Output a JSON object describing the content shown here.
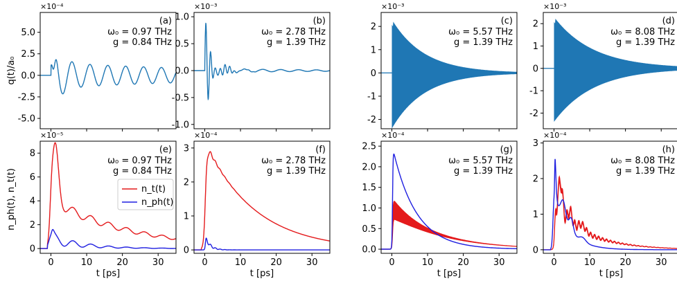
{
  "figure": {
    "x_axis_label": "t [ps]",
    "top_row_y_label": "q(t)/a₀",
    "bottom_row_y_label": "n_ph(t), n_t(t)",
    "legend": {
      "entries": [
        {
          "label": "n_t(t)",
          "sub": "t",
          "color": "#e41a1c"
        },
        {
          "label": "n_ph(t)",
          "sub": "ph",
          "color": "#1f1fe0"
        }
      ]
    }
  },
  "chart_data": [
    {
      "panel": "(a)",
      "type": "line",
      "omega": "ω₀ = 0.97 THz",
      "g": "g = 0.84 THz",
      "exponent": "×10⁻⁴",
      "xlim": [
        -3,
        35
      ],
      "ylim": [
        -6.2,
        7.3
      ],
      "yticks": [
        "-5.0",
        "-2.5",
        "0.0",
        "2.5",
        "5.0"
      ],
      "ytick_values": [
        -5,
        -2.5,
        0,
        2.5,
        5
      ],
      "xticks": [
        0,
        10,
        20,
        30
      ],
      "show_xticklabels": false,
      "series": [
        {
          "name": "q(t)",
          "color": "#1f77b4",
          "model": {
            "kind": "damped",
            "f": 0.2,
            "A": 6.8,
            "tau": 8,
            "floor": 1.5,
            "kick": true
          }
        }
      ]
    },
    {
      "panel": "(b)",
      "type": "line",
      "omega": "ω₀ = 2.78 THz",
      "g": "g = 1.39 THz",
      "exponent": "×10⁻³",
      "xlim": [
        -3,
        35
      ],
      "ylim": [
        -1.08,
        1.08
      ],
      "yticks": [
        "-1.0",
        "-0.5",
        "0.0",
        "0.5",
        "1.0"
      ],
      "ytick_values": [
        -1,
        -0.5,
        0,
        0.5,
        1
      ],
      "xticks": [
        0,
        10,
        20,
        30
      ],
      "show_xticklabels": false,
      "series": [
        {
          "name": "q(t)",
          "color": "#1f77b4",
          "model": {
            "kind": "beat",
            "f": 0.75,
            "A": 1.0,
            "tau": 2.5,
            "slow_f": 0.2,
            "slow_A": 0.04
          }
        }
      ]
    },
    {
      "panel": "(c)",
      "type": "line",
      "omega": "ω₀ = 5.57 THz",
      "g": "g = 1.39 THz",
      "exponent": "×10⁻³",
      "xlim": [
        -3,
        35
      ],
      "ylim": [
        -2.4,
        2.6
      ],
      "yticks": [
        "-2",
        "-1",
        "0",
        "1",
        "2"
      ],
      "ytick_values": [
        -2,
        -1,
        0,
        1,
        2
      ],
      "xticks": [
        0,
        10,
        20,
        30
      ],
      "show_xticklabels": false,
      "series": [
        {
          "name": "q(t)",
          "color": "#1f77b4",
          "model": {
            "kind": "envelope",
            "A": 2.3,
            "tau": 9
          }
        }
      ]
    },
    {
      "panel": "(d)",
      "type": "line",
      "omega": "ω₀ = 8.08 THz",
      "g": "g = 1.39 THz",
      "exponent": "×10⁻³",
      "xlim": [
        -3,
        35
      ],
      "ylim": [
        -2.7,
        2.5
      ],
      "yticks": [
        "-2",
        "-1",
        "0",
        "1",
        "2"
      ],
      "ytick_values": [
        -2,
        -1,
        0,
        1,
        2
      ],
      "xticks": [
        0,
        10,
        20,
        30
      ],
      "show_xticklabels": false,
      "series": [
        {
          "name": "q(t)",
          "color": "#1f77b4",
          "model": {
            "kind": "envelope",
            "A": 2.3,
            "tau": 11
          }
        }
      ]
    },
    {
      "panel": "(e)",
      "type": "line",
      "omega": "ω₀ = 0.97 THz",
      "g": "g = 0.84 THz",
      "exponent": "×10⁻⁵",
      "xlim": [
        -3,
        35
      ],
      "ylim": [
        -0.4,
        9.0
      ],
      "yticks": [
        "0",
        "2",
        "4",
        "6",
        "8"
      ],
      "ytick_values": [
        0,
        2,
        4,
        6,
        8
      ],
      "xticks": [
        0,
        10,
        20,
        30
      ],
      "show_xticklabels": true,
      "legend": true,
      "series": [
        {
          "name": "n_t(t)",
          "color": "#e41a1c",
          "model": {
            "kind": "rise_decay",
            "rise": 0.7,
            "A": 4.1,
            "tau": 22,
            "osc_A": 0.45,
            "osc_f": 0.2,
            "osc_tau": 25,
            "peak": [
              1.2,
              4.6,
              0.9
            ],
            "peak2": [
              0,
              2.0,
              0.4
            ]
          }
        },
        {
          "name": "n_ph(t)",
          "color": "#1f1fe0",
          "model": {
            "kind": "rise_decay",
            "rise": 0.5,
            "A": 0.8,
            "tau": 9,
            "osc_A": 0.5,
            "osc_f": 0.2,
            "osc_tau": 9,
            "peak": [
              0,
              1.0,
              0.6
            ],
            "peak2": [
              0,
              0,
              1
            ]
          }
        }
      ]
    },
    {
      "panel": "(f)",
      "type": "line",
      "omega": "ω₀ = 2.78 THz",
      "g": "g = 1.39 THz",
      "exponent": "×10⁻⁴",
      "xlim": [
        -3,
        35
      ],
      "ylim": [
        -0.1,
        3.2
      ],
      "yticks": [
        "0",
        "1",
        "2",
        "3"
      ],
      "ytick_values": [
        0,
        1,
        2,
        3
      ],
      "xticks": [
        0,
        10,
        20,
        30
      ],
      "show_xticklabels": true,
      "series": [
        {
          "name": "n_t(t)",
          "color": "#e41a1c",
          "model": {
            "kind": "rise_decay",
            "rise": 0.8,
            "A": 3.2,
            "tau": 14,
            "osc_A": 0.1,
            "osc_f": 0.75,
            "osc_tau": 2.5,
            "peak": [
              0,
              0,
              1
            ],
            "peak2": [
              0,
              0,
              1
            ]
          }
        },
        {
          "name": "n_ph(t)",
          "color": "#1f1fe0",
          "model": {
            "kind": "rise_decay",
            "rise": 0.3,
            "A": 0.45,
            "tau": 1.3,
            "osc_A": 0.08,
            "osc_f": 0.75,
            "osc_tau": 2,
            "peak": [
              0,
              0,
              1
            ],
            "peak2": [
              0,
              0,
              1
            ]
          }
        }
      ]
    },
    {
      "panel": "(g)",
      "type": "line",
      "omega": "ω₀ = 5.57 THz",
      "g": "g = 1.39 THz",
      "exponent": "×10⁻⁴",
      "xlim": [
        -3,
        35
      ],
      "ylim": [
        -0.1,
        2.62
      ],
      "yticks": [
        "0.0",
        "0.5",
        "1.0",
        "1.5",
        "2.0",
        "2.5"
      ],
      "ytick_values": [
        0,
        0.5,
        1.0,
        1.5,
        2.0,
        2.5
      ],
      "xticks": [
        0,
        10,
        20,
        30
      ],
      "show_xticklabels": true,
      "series": [
        {
          "name": "n_t(t)",
          "color": "#e41a1c",
          "model": {
            "kind": "band",
            "rise": 0.3,
            "A": 1.0,
            "tau": 13,
            "band_A": 0.25,
            "band_tau": 6
          }
        },
        {
          "name": "n_ph(t)",
          "color": "#1f1fe0",
          "model": {
            "kind": "rise_decay",
            "rise": 0.25,
            "A": 2.55,
            "tau": 6.5,
            "osc_A": 0,
            "osc_f": 1,
            "osc_tau": 1,
            "peak": [
              0,
              0,
              1
            ],
            "peak2": [
              0,
              0,
              1
            ]
          }
        }
      ]
    },
    {
      "panel": "(h)",
      "type": "line",
      "omega": "ω₀ = 8.08 THz",
      "g": "g = 1.39 THz",
      "exponent": "×10⁻⁴",
      "xlim": [
        -3,
        35
      ],
      "ylim": [
        -0.1,
        3.05
      ],
      "yticks": [
        "0",
        "1",
        "2",
        "3"
      ],
      "ytick_values": [
        0,
        1,
        2,
        3
      ],
      "xticks": [
        0,
        10,
        20,
        30
      ],
      "show_xticklabels": true,
      "series": [
        {
          "name": "n_t(t)",
          "color": "#e41a1c",
          "model": {
            "kind": "band",
            "rise": 0.5,
            "A": 1.15,
            "tau": 10,
            "band_A": 0.08,
            "band_tau": 8,
            "bumps": [
              [
                1.8,
                0.95,
                0.6
              ],
              [
                4.5,
                0.35,
                0.6
              ],
              [
                7.8,
                0.18,
                1.0
              ]
            ],
            "wiggle": [
              0.9,
              0.25,
              7
            ]
          }
        },
        {
          "name": "n_ph(t)",
          "color": "#1f1fe0",
          "model": {
            "kind": "rise_decay",
            "rise": 0.15,
            "A": 1.55,
            "tau": 4.2,
            "osc_A": 0,
            "osc_f": 1,
            "osc_tau": 1,
            "peak": [
              0.1,
              1.5,
              0.35
            ],
            "peak2": [
              2.6,
              0.55,
              0.7
            ],
            "bumps": [
              [
                4.8,
                0.4,
                0.6
              ],
              [
                8.0,
                0.12,
                0.9
              ]
            ]
          }
        }
      ]
    }
  ]
}
